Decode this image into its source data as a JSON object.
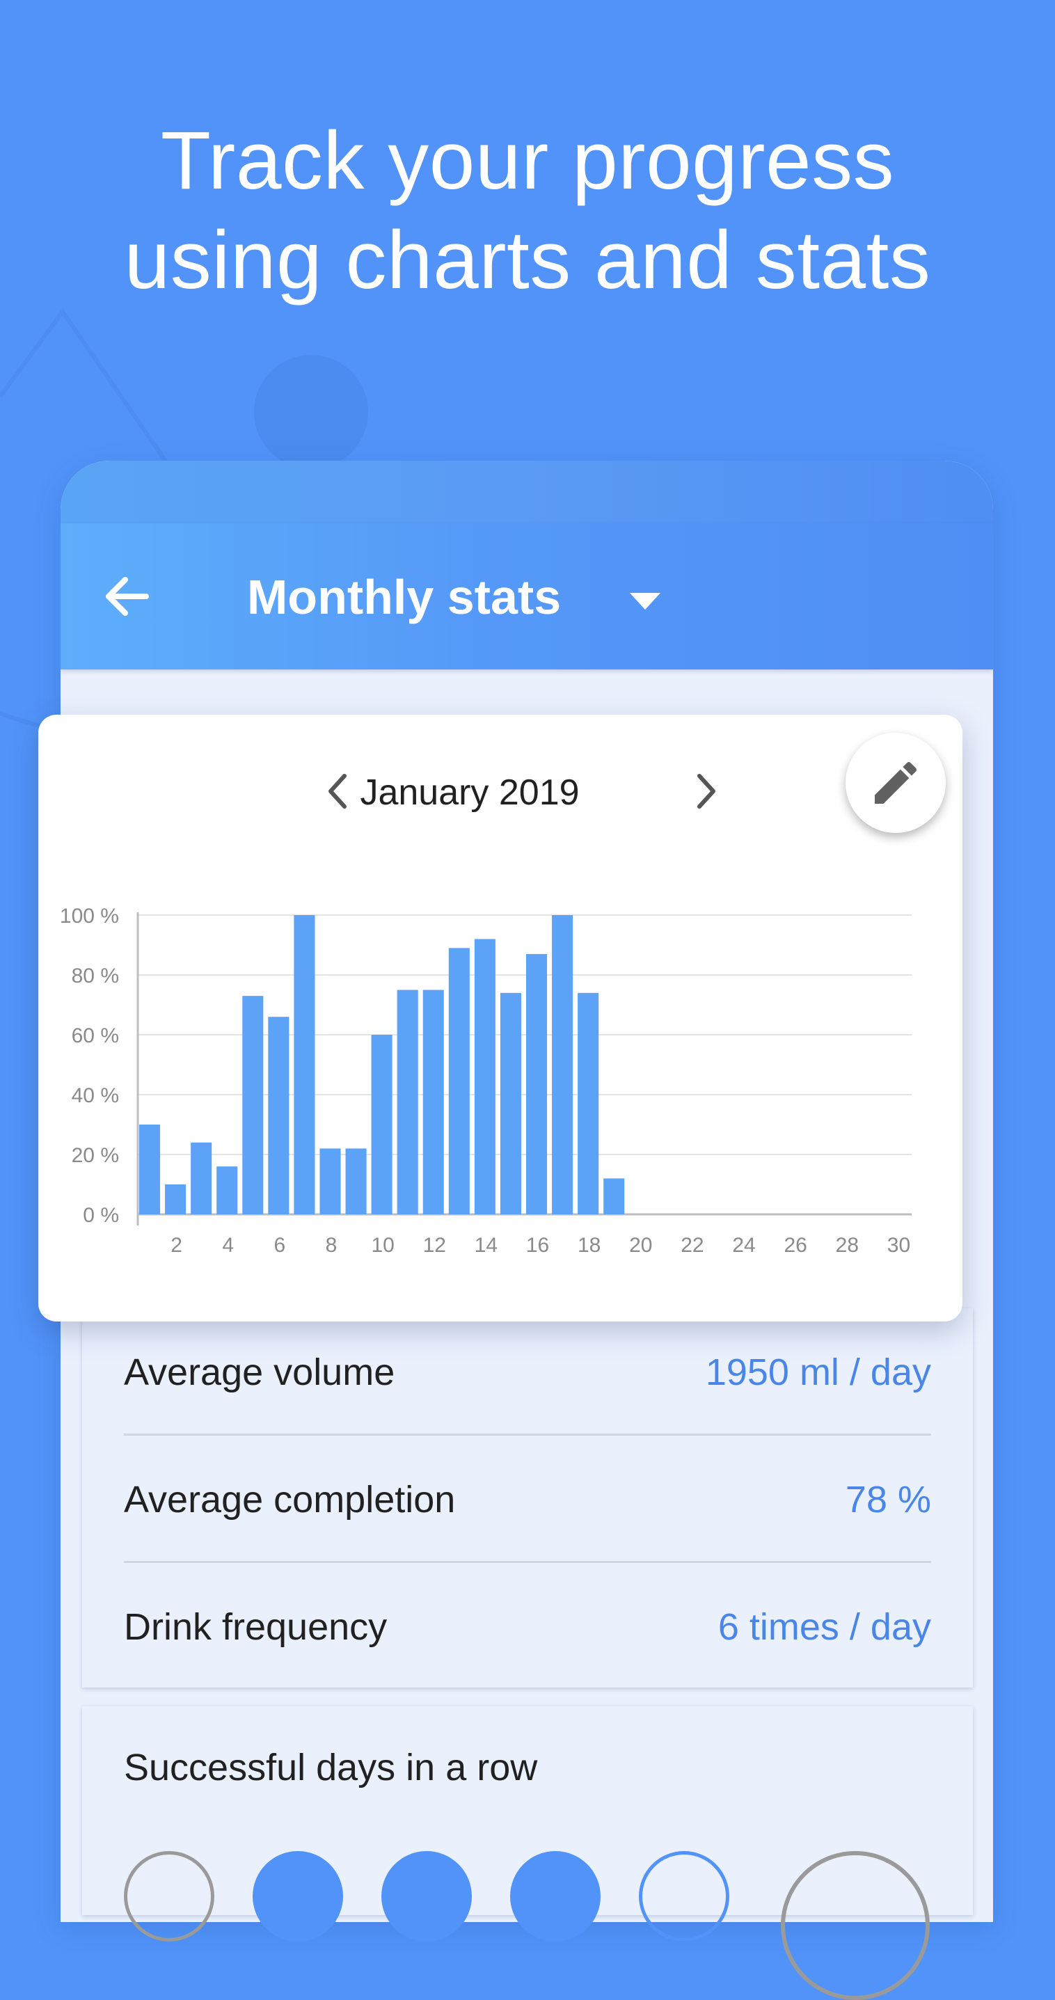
{
  "headline": {
    "line1": "Track your progress",
    "line2": "using charts and stats"
  },
  "appbar": {
    "title": "Monthly stats"
  },
  "month_nav": {
    "label": "January 2019"
  },
  "stats": [
    {
      "label": "Average volume",
      "value": "1950 ml / day"
    },
    {
      "label": "Average completion",
      "value": "78 %"
    },
    {
      "label": "Drink frequency",
      "value": "6 times / day"
    }
  ],
  "streak": {
    "title": "Successful days in a row"
  },
  "colors": {
    "background": "#5193F8",
    "bar": "#5CA3F7",
    "accent_text": "#4A86E8"
  },
  "chart_data": {
    "type": "bar",
    "x": [
      1,
      2,
      3,
      4,
      5,
      6,
      7,
      8,
      9,
      10,
      11,
      12,
      13,
      14,
      15,
      16,
      17,
      18,
      19,
      20,
      21,
      22,
      23,
      24,
      25,
      26,
      27,
      28,
      29,
      30
    ],
    "values": [
      30,
      10,
      24,
      16,
      73,
      66,
      100,
      22,
      22,
      60,
      75,
      75,
      89,
      92,
      74,
      87,
      100,
      74,
      12,
      0,
      0,
      0,
      0,
      0,
      0,
      0,
      0,
      0,
      0,
      0
    ],
    "x_ticks": [
      "2",
      "4",
      "6",
      "8",
      "10",
      "12",
      "14",
      "16",
      "18",
      "20",
      "22",
      "24",
      "26",
      "28",
      "30"
    ],
    "y_ticks": [
      "100 %",
      "80 %",
      "60 %",
      "40 %",
      "20 %",
      "0 %"
    ],
    "ylim": [
      0,
      100
    ],
    "grid": true
  }
}
